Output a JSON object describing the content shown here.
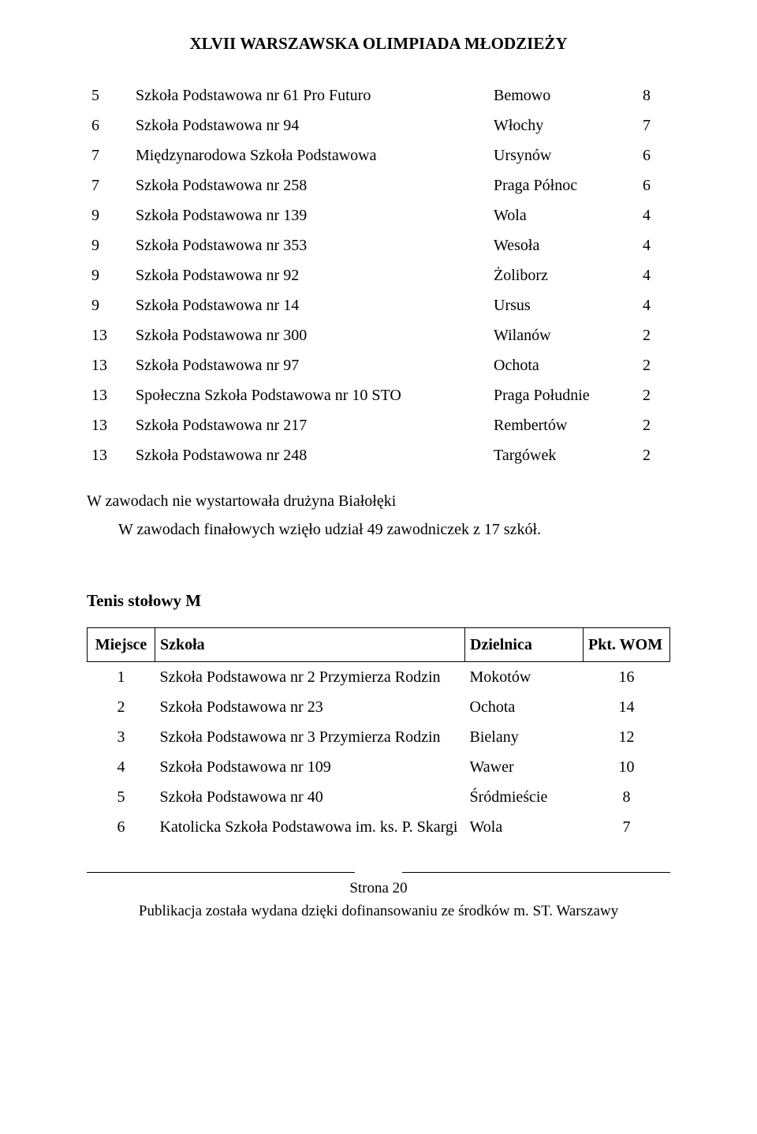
{
  "page_title": "XLVII WARSZAWSKA OLIMPIADA MŁODZIEŻY",
  "table1": {
    "columns": {
      "rank": "",
      "school": "",
      "district": "",
      "pkt": ""
    },
    "col_widths": {
      "rank": 56,
      "dist": 170,
      "pkt": 60
    },
    "rows": [
      {
        "rank": "5",
        "school": "Szkoła Podstawowa nr 61 Pro Futuro",
        "district": "Bemowo",
        "pkt": "8"
      },
      {
        "rank": "6",
        "school": "Szkoła Podstawowa nr 94",
        "district": "Włochy",
        "pkt": "7"
      },
      {
        "rank": "7",
        "school": "Międzynarodowa Szkoła Podstawowa",
        "district": "Ursynów",
        "pkt": "6"
      },
      {
        "rank": "7",
        "school": "Szkoła Podstawowa nr 258",
        "district": "Praga Północ",
        "pkt": "6"
      },
      {
        "rank": "9",
        "school": "Szkoła Podstawowa nr 139",
        "district": "Wola",
        "pkt": "4"
      },
      {
        "rank": "9",
        "school": "Szkoła Podstawowa nr 353",
        "district": "Wesoła",
        "pkt": "4"
      },
      {
        "rank": "9",
        "school": "Szkoła Podstawowa nr 92",
        "district": "Żoliborz",
        "pkt": "4"
      },
      {
        "rank": "9",
        "school": "Szkoła Podstawowa nr 14",
        "district": "Ursus",
        "pkt": "4"
      },
      {
        "rank": "13",
        "school": "Szkoła Podstawowa nr 300",
        "district": "Wilanów",
        "pkt": "2"
      },
      {
        "rank": "13",
        "school": "Szkoła Podstawowa nr 97",
        "district": "Ochota",
        "pkt": "2"
      },
      {
        "rank": "13",
        "school": "Społeczna Szkoła Podstawowa nr 10 STO",
        "district": "Praga Południe",
        "pkt": "2"
      },
      {
        "rank": "13",
        "school": "Szkoła Podstawowa nr 217",
        "district": "Rembertów",
        "pkt": "2"
      },
      {
        "rank": "13",
        "school": "Szkoła Podstawowa nr 248",
        "district": "Targówek",
        "pkt": "2"
      }
    ]
  },
  "note1": "W zawodach nie wystartowała drużyna Białołęki",
  "note2": "W zawodach finałowych wzięło udział 49   zawodniczek z  17   szkół.",
  "section2_title": "Tenis stołowy M",
  "table2": {
    "header": {
      "rank": "Miejsce",
      "school": "Szkoła",
      "district": "Dzielnica",
      "pkt": "Pkt. WOM"
    },
    "col_widths": {
      "rank": 86,
      "dist": 150,
      "pkt": 110
    },
    "rows": [
      {
        "rank": "1",
        "school": "Szkoła Podstawowa nr 2 Przymierza Rodzin",
        "district": "Mokotów",
        "pkt": "16"
      },
      {
        "rank": "2",
        "school": "Szkoła Podstawowa nr 23",
        "district": "Ochota",
        "pkt": "14"
      },
      {
        "rank": "3",
        "school": "Szkoła Podstawowa nr 3 Przymierza Rodzin",
        "district": "Bielany",
        "pkt": "12"
      },
      {
        "rank": "4",
        "school": "Szkoła Podstawowa nr 109",
        "district": "Wawer",
        "pkt": "10"
      },
      {
        "rank": "5",
        "school": "Szkoła Podstawowa nr 40",
        "district": "Śródmieście",
        "pkt": "8"
      },
      {
        "rank": "6",
        "school": "Katolicka Szkoła Podstawowa im. ks. P. Skargi",
        "district": "Wola",
        "pkt": "7"
      }
    ]
  },
  "footer_page": "Strona 20",
  "footer_note": "Publikacja została wydana dzięki dofinansowaniu ze środków m. ST. Warszawy"
}
